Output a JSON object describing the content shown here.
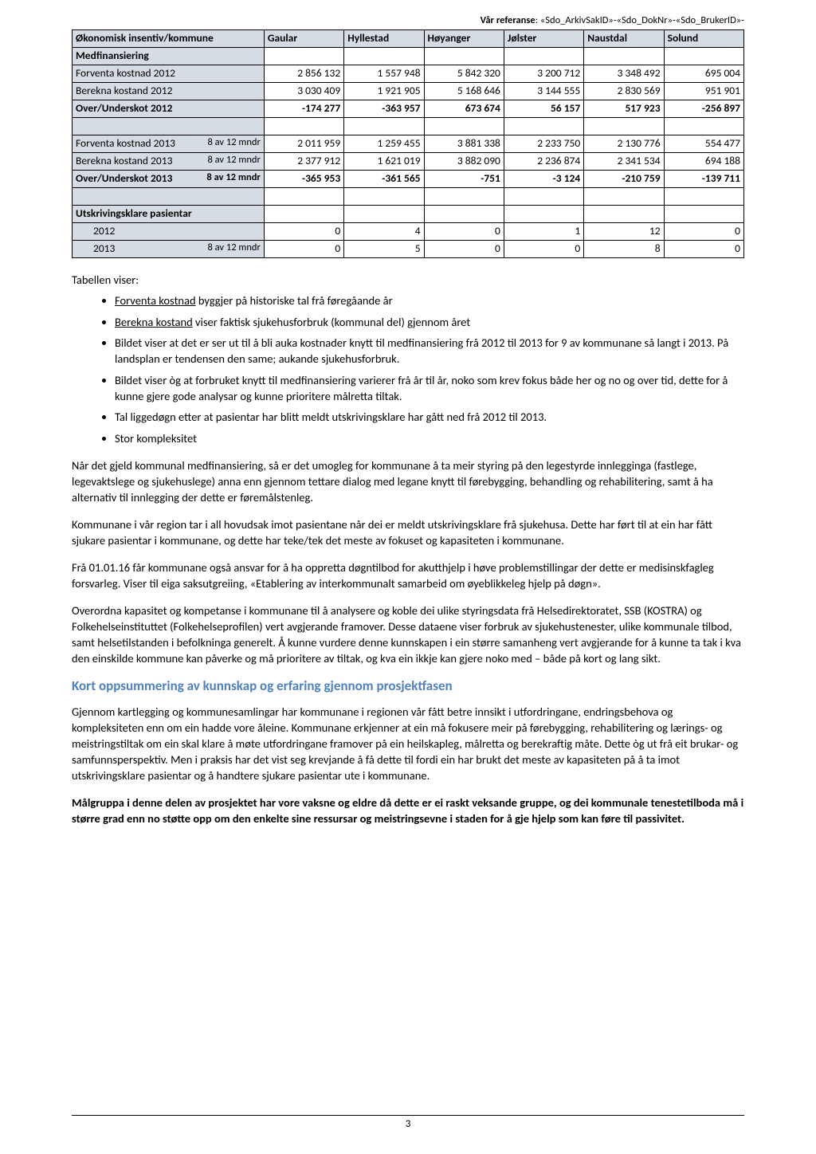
{
  "reference": {
    "label": "Vår referanse",
    "value": ": «Sdo_ArkivSakID»-«Sdo_DokNr»-«Sdo_BrukerID»-"
  },
  "table": {
    "header_left": "Økonomisk insentiv/kommune",
    "columns": [
      "Gaular",
      "Hyllestad",
      "Høyanger",
      "Jølster",
      "Naustdal",
      "Solund"
    ],
    "section1_title": "Medfinansiering",
    "note_8av12": "8 av 12 mndr",
    "rows_2012": [
      {
        "label": "Forventa kostnad 2012",
        "vals": [
          "2 856 132",
          "1 557 948",
          "5 842 320",
          "3 200 712",
          "3 348 492",
          "695 004"
        ],
        "bold": false
      },
      {
        "label": "Berekna kostand 2012",
        "vals": [
          "3 030 409",
          "1 921 905",
          "5 168 646",
          "3 144 555",
          "2 830 569",
          "951 901"
        ],
        "bold": false
      },
      {
        "label": "Over/Underskot 2012",
        "vals": [
          "-174 277",
          "-363 957",
          "673 674",
          "56 157",
          "517 923",
          "-256 897"
        ],
        "bold": true
      }
    ],
    "rows_2013": [
      {
        "label": "Forventa kostnad  2013",
        "vals": [
          "2 011 959",
          "1 259 455",
          "3 881 338",
          "2 233 750",
          "2 130 776",
          "554 477"
        ],
        "bold": false
      },
      {
        "label": "Berekna kostand  2013",
        "vals": [
          "2 377 912",
          "1 621 019",
          "3 882 090",
          "2 236 874",
          "2 341 534",
          "694 188"
        ],
        "bold": false
      },
      {
        "label": "Over/Underskot 2013",
        "vals": [
          "-365 953",
          "-361 565",
          "-751",
          "-3 124",
          "-210 759",
          "-139 711"
        ],
        "bold": true
      }
    ],
    "section2_title": "Utskrivingsklare pasientar",
    "utskriv": [
      {
        "label": "2012",
        "note": "",
        "vals": [
          "0",
          "4",
          "0",
          "1",
          "12",
          "0"
        ]
      },
      {
        "label": "2013",
        "note": "8 av 12 mndr",
        "vals": [
          "0",
          "5",
          "0",
          "0",
          "8",
          "0"
        ]
      }
    ]
  },
  "intro_label": "Tabellen viser:",
  "bullets": [
    {
      "pre": "Forventa kostnad",
      "rest": " byggjer på historiske tal frå føregåande år",
      "under": true
    },
    {
      "pre": "Berekna kostand",
      "rest": " viser faktisk sjukehusforbruk (kommunal del) gjennom året",
      "under": true
    },
    {
      "plain": "Bildet viser at det er ser ut til å bli auka kostnader knytt til medfinansiering frå 2012 til 2013 for 9 av kommunane så langt i 2013. På landsplan er tendensen den same; aukande sjukehusforbruk."
    },
    {
      "plain": "Bildet viser òg at forbruket knytt til medfinansiering varierer frå år til år, noko som krev fokus både her og no og over tid, dette for å kunne gjere gode analysar og kunne prioritere målretta tiltak."
    },
    {
      "plain": "Tal liggedøgn etter at pasientar har blitt meldt utskrivingsklare har gått ned frå 2012 til 2013."
    },
    {
      "plain": "Stor kompleksitet"
    }
  ],
  "paras": [
    "Når det gjeld kommunal medfinansiering, så er det umogleg for kommunane å ta meir styring på den legestyrde innlegginga (fastlege, legevaktslege og sjukehuslege) anna enn gjennom tettare dialog med legane knytt til førebygging, behandling og rehabilitering, samt å ha alternativ til innlegging der dette er føremålstenleg.",
    "Kommunane i vår region tar i all hovudsak imot pasientane når dei er meldt utskrivingsklare frå sjukehusa. Dette har ført til at ein har fått sjukare pasientar i kommunane, og dette har teke/tek det meste av fokuset og kapasiteten i kommunane.",
    "Frå 01.01.16 får kommunane også ansvar for å ha oppretta døgntilbod for akutthjelp i høve problemstillingar der dette er medisinskfagleg forsvarleg. Viser til eiga saksutgreiing, «Etablering av interkommunalt samarbeid om øyeblikkeleg hjelp på døgn».",
    "Overordna kapasitet og kompetanse i kommunane til å analysere og koble dei ulike styringsdata frå Helsedirektoratet, SSB (KOSTRA) og Folkehelseinstituttet (Folkehelseprofilen) vert avgjerande framover. Desse dataene viser forbruk av sjukehustenester, ulike kommunale tilbod, samt helsetilstanden i befolkninga generelt. Å kunne vurdere denne kunnskapen i ein større samanheng vert avgjerande for å kunne ta tak i kva den einskilde kommune kan påverke og må prioritere av tiltak, og kva ein ikkje kan gjere noko med – både på kort og lang sikt."
  ],
  "section_heading": "Kort oppsummering av kunnskap og erfaring gjennom prosjektfasen",
  "para_after": "Gjennom kartlegging og kommunesamlingar har kommunane i regionen vår fått betre innsikt i utfordringane, endringsbehova og kompleksiteten enn om ein hadde vore åleine. Kommunane erkjenner at ein må fokusere meir på førebygging, rehabilitering og lærings- og meistringstiltak om ein skal klare å møte utfordringane framover på ein heilskapleg, målretta og berekraftig måte. Dette òg ut frå eit brukar- og samfunnsperspektiv. Men i praksis har det vist seg krevjande å få dette til fordi ein har brukt det meste av kapasiteten på å ta imot utskrivingsklare pasientar og å handtere sjukare pasientar ute i kommunane.",
  "bold_para": "Målgruppa i denne delen av prosjektet har vore vaksne og eldre då dette er ei raskt veksande gruppe, og dei kommunale tenestetilboda må i større grad enn no støtte opp om den enkelte sine ressursar og meistringsevne i staden for å gje hjelp som kan føre til passivitet.",
  "page_num": "3"
}
